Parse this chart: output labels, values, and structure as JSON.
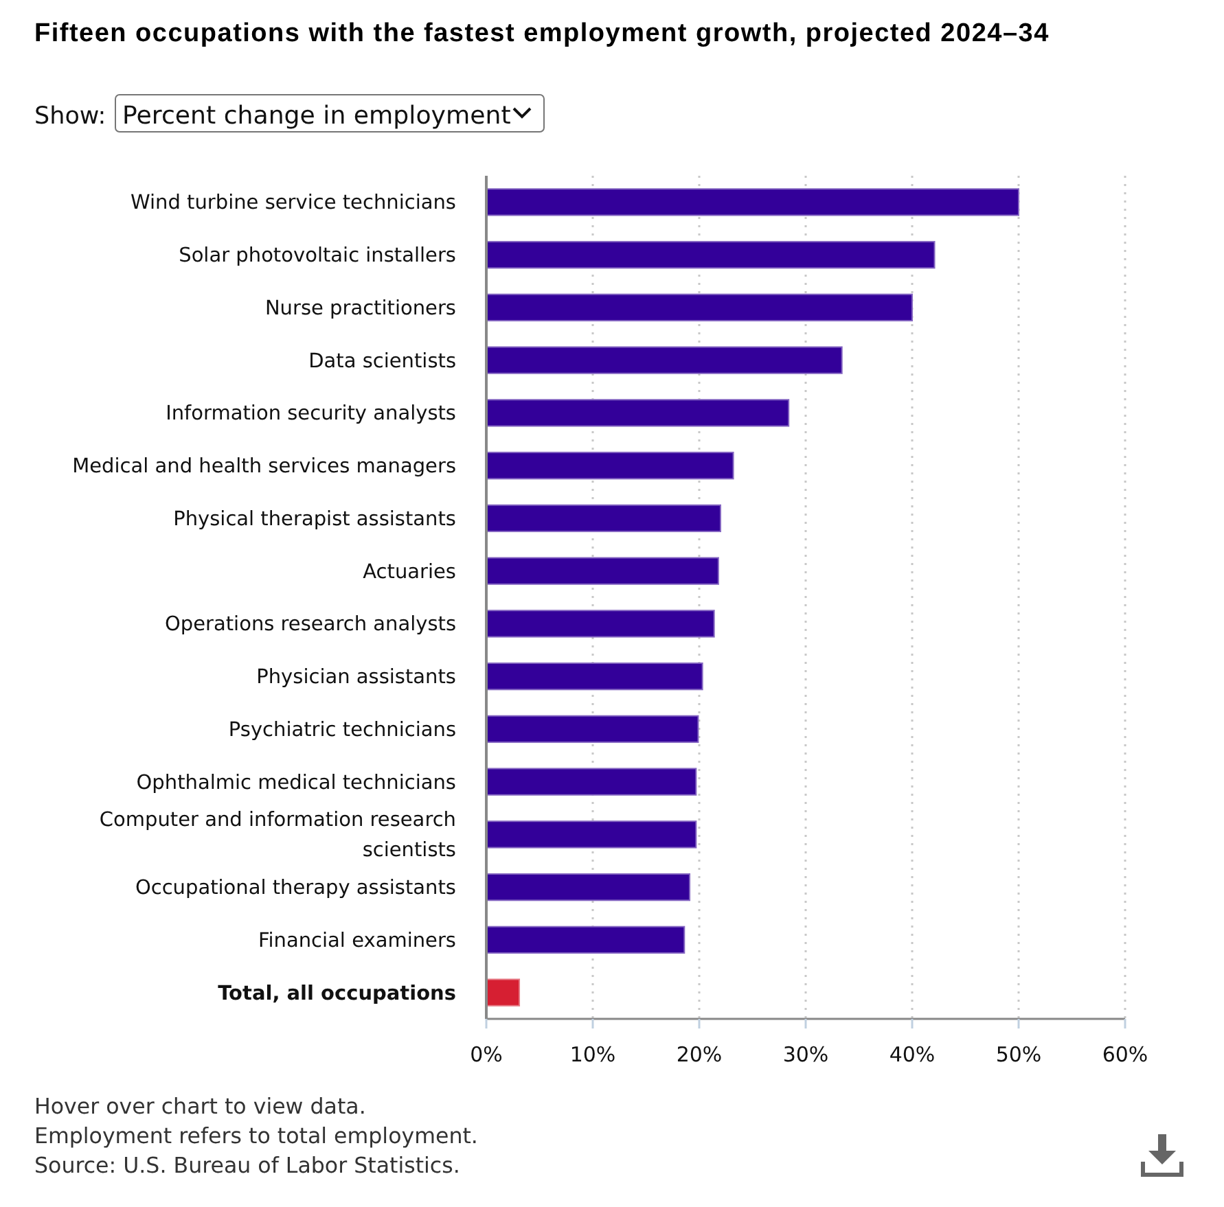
{
  "chart_data": {
    "type": "bar",
    "orientation": "horizontal",
    "title": "Fifteen occupations with the fastest employment growth, projected 2024–34",
    "categories": [
      "Wind turbine service technicians",
      "Solar photovoltaic installers",
      "Nurse practitioners",
      "Data scientists",
      "Information security analysts",
      "Medical and health services managers",
      "Physical therapist assistants",
      "Actuaries",
      "Operations research analysts",
      "Physician assistants",
      "Psychiatric technicians",
      "Ophthalmic medical technicians",
      "Computer and information research scientists",
      "Occupational therapy assistants",
      "Financial examiners",
      "Total, all occupations"
    ],
    "values": [
      50.0,
      42.1,
      40.0,
      33.4,
      28.4,
      23.2,
      22.0,
      21.8,
      21.4,
      20.3,
      19.9,
      19.7,
      19.7,
      19.1,
      18.6,
      3.1
    ],
    "colors": [
      "#330099",
      "#330099",
      "#330099",
      "#330099",
      "#330099",
      "#330099",
      "#330099",
      "#330099",
      "#330099",
      "#330099",
      "#330099",
      "#330099",
      "#330099",
      "#330099",
      "#330099",
      "#d61f32"
    ],
    "xlim": [
      0,
      60
    ],
    "xticks": [
      {
        "value": 0,
        "label": "0%"
      },
      {
        "value": 10,
        "label": "10%"
      },
      {
        "value": 20,
        "label": "20%"
      },
      {
        "value": 30,
        "label": "30%"
      },
      {
        "value": 40,
        "label": "40%"
      },
      {
        "value": 50,
        "label": "50%"
      },
      {
        "value": 60,
        "label": "60%"
      }
    ],
    "grid": "x",
    "annotations": [
      "Show:",
      "Percent change in employment",
      "Hover over chart to view data.",
      "Employment refers to total employment.",
      "Source: U.S. Bureau of Labor Statistics."
    ]
  }
}
